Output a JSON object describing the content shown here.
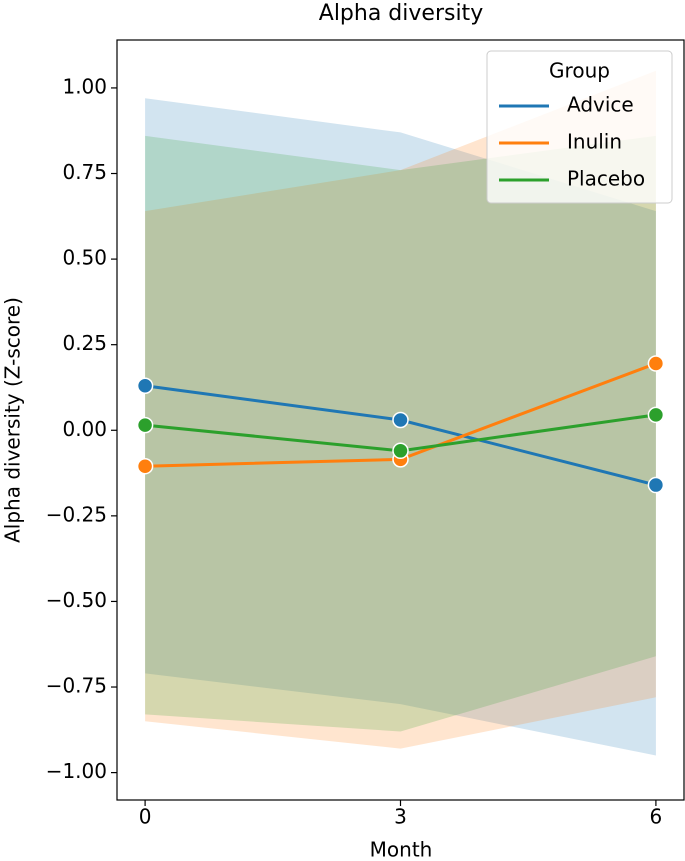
{
  "chart_data": {
    "type": "line",
    "title": "Alpha diversity",
    "x_label": "Month",
    "y_label": "Alpha diversity (Z-score)",
    "x": [
      0,
      3,
      6
    ],
    "xlim": [
      -0.33,
      6.33
    ],
    "xticks": [
      0,
      3,
      6
    ],
    "ylim": [
      -1.08,
      1.14
    ],
    "yticks": [
      {
        "value": 1,
        "label": "1.00"
      },
      0.75,
      {
        "value": 0.5,
        "label": "0.50"
      },
      0.25,
      {
        "value": 0,
        "label": "0.00"
      },
      {
        "value": -0.25,
        "label": "−0.25"
      },
      {
        "value": -0.5,
        "label": "−0.50"
      },
      {
        "value": -0.75,
        "label": "−0.75"
      },
      {
        "value": -1,
        "label": "−1.00"
      }
    ],
    "legend_title": "Group",
    "legend": "upper right",
    "grid": false,
    "series": [
      {
        "name": "Advice",
        "color": "#1f77b4",
        "values": [
          0.13,
          0.03,
          -0.16
        ],
        "upper": [
          0.97,
          0.87,
          0.64
        ],
        "lower": [
          -0.71,
          -0.8,
          -0.95
        ]
      },
      {
        "name": "Inulin",
        "color": "#ff7f0e",
        "values": [
          -0.105,
          -0.085,
          0.195
        ],
        "upper": [
          0.64,
          0.76,
          1.05
        ],
        "lower": [
          -0.85,
          -0.93,
          -0.78
        ]
      },
      {
        "name": "Placebo",
        "color": "#2ca02c",
        "values": [
          0.015,
          -0.06,
          0.045
        ],
        "upper": [
          0.86,
          0.76,
          0.86
        ],
        "lower": [
          -0.83,
          -0.88,
          -0.66
        ]
      }
    ]
  }
}
